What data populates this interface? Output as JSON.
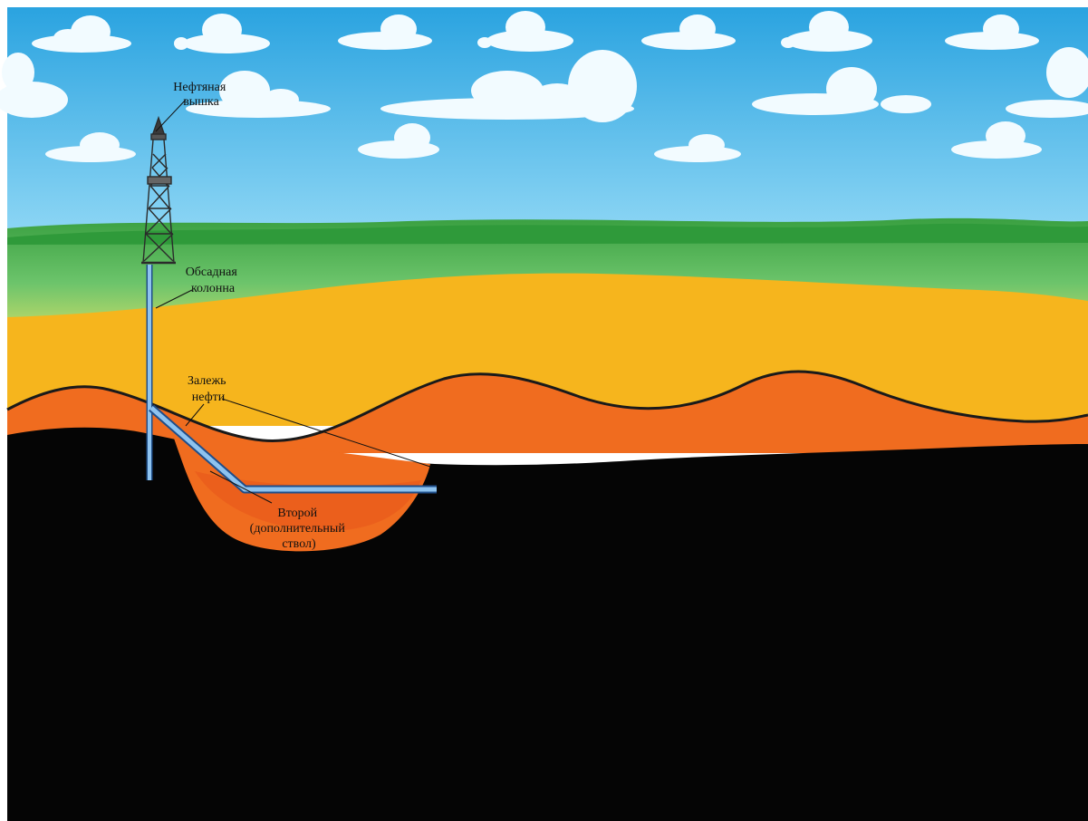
{
  "labels": {
    "rig_line1": "Нефтяная",
    "rig_line2": "вышка",
    "casing_line1": "Обсадная",
    "casing_line2": "колонна",
    "deposit_line1": "Залежь",
    "deposit_line2": "нефти",
    "second_line1": "Второй",
    "second_line2": "(дополнительный",
    "second_line3": "ствол)"
  },
  "colors": {
    "sky_top": "#2aa3e0",
    "sky_bottom": "#8fd7f5",
    "grass": "#3fa84a",
    "sand": "#f6b51d",
    "oil_layer": "#f06c1f",
    "rock": "#050505",
    "pipe": "#7ab7e8"
  }
}
